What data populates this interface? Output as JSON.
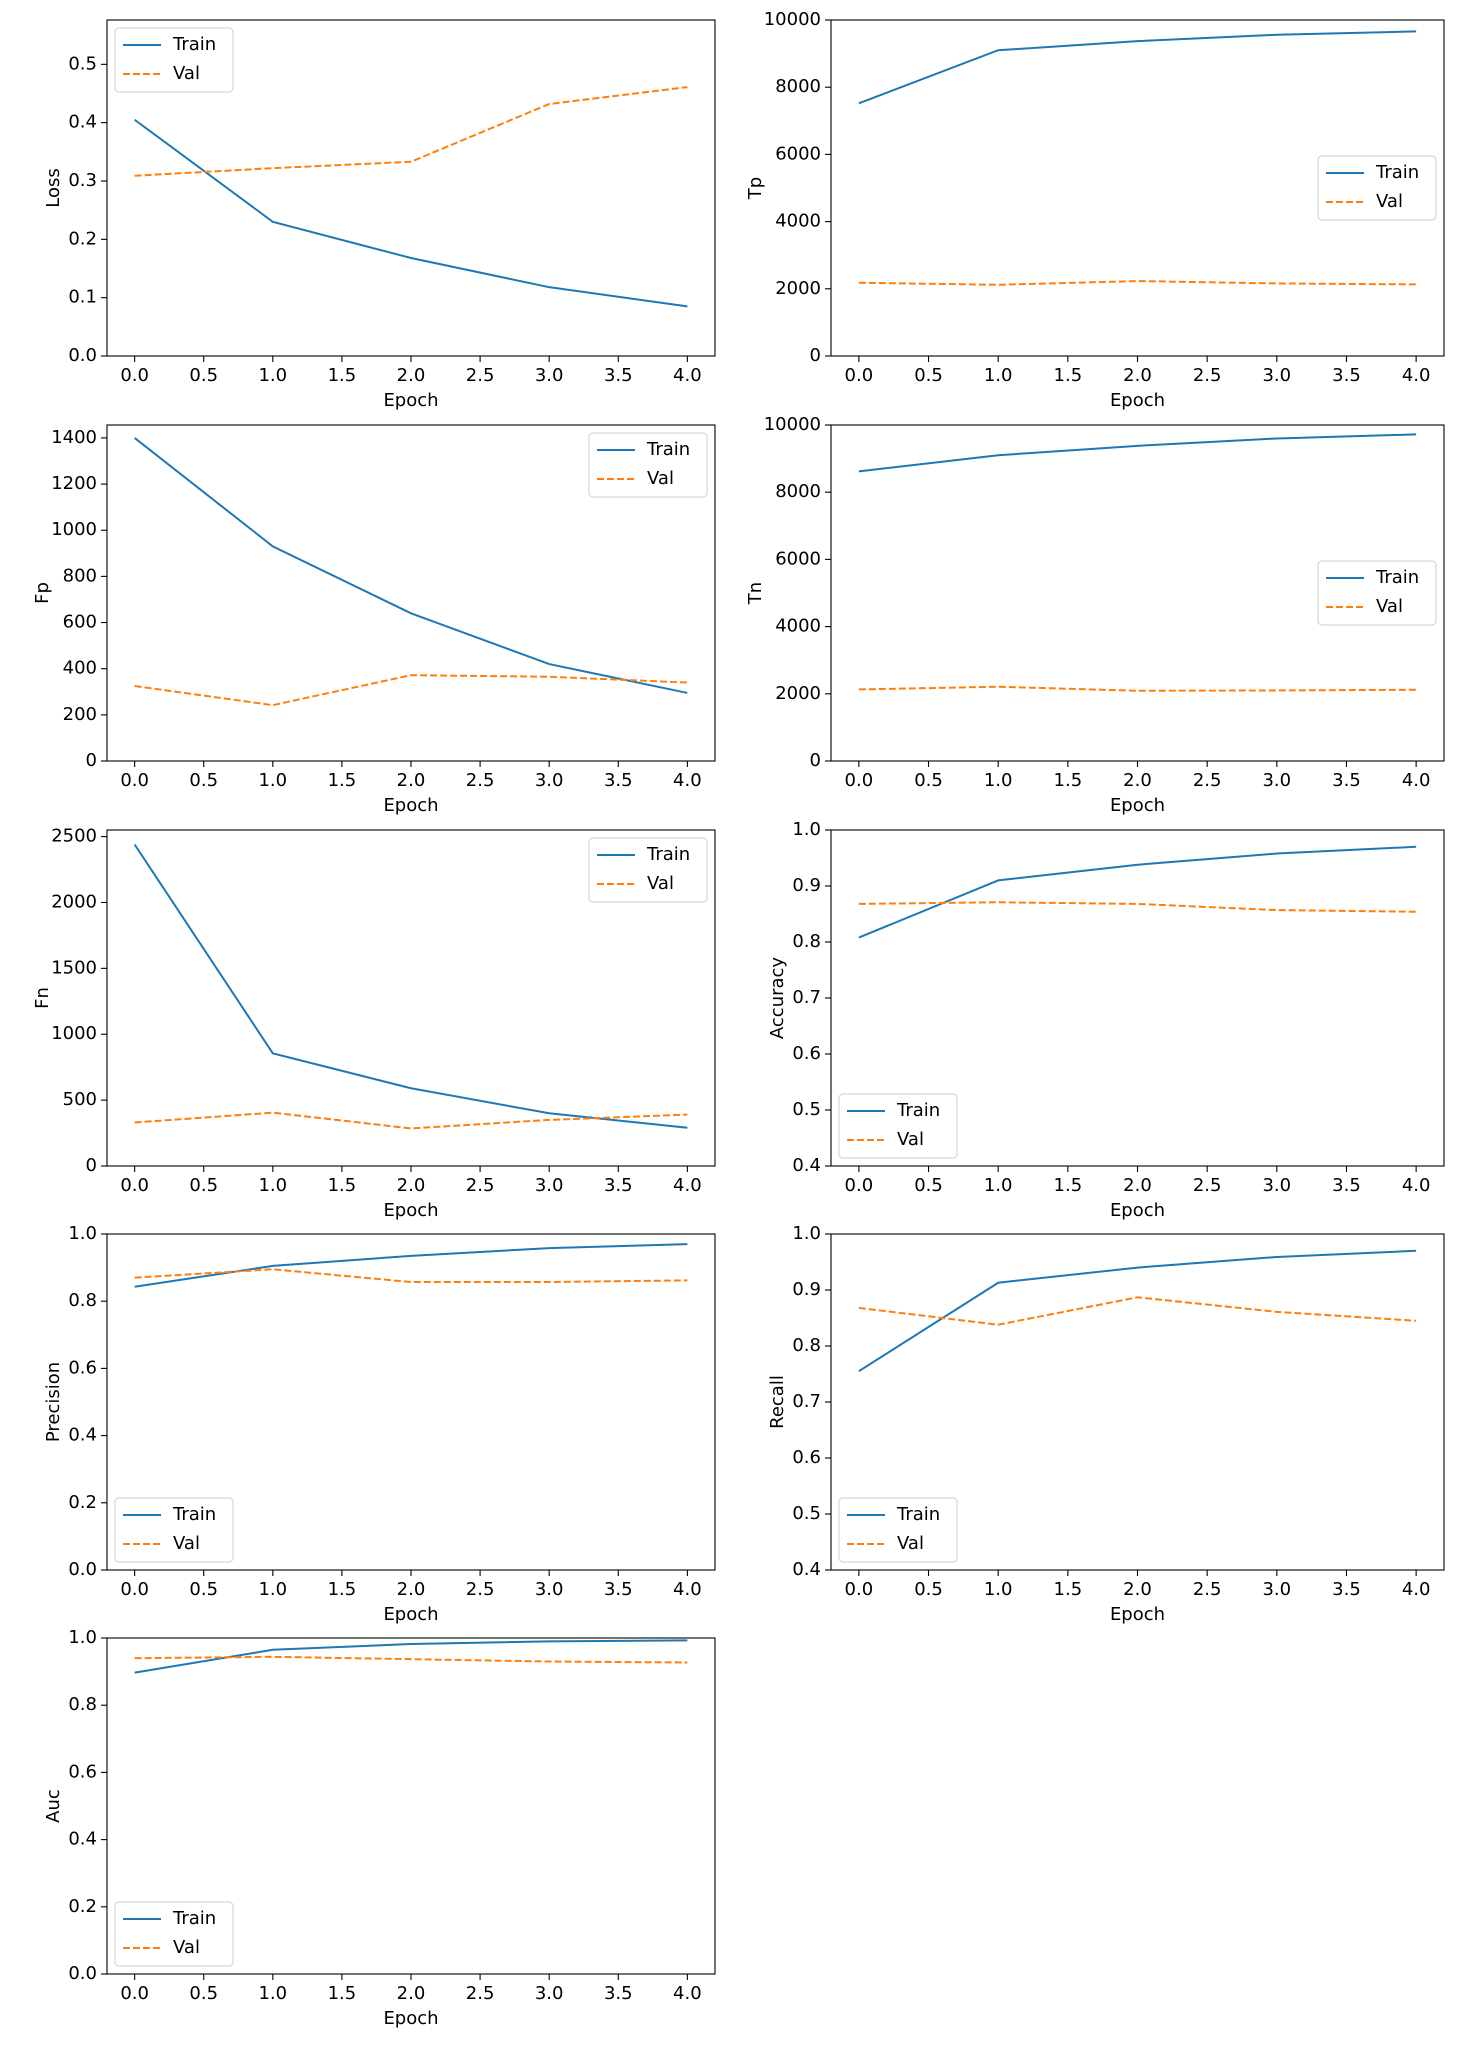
{
  "chart_data": [
    {
      "type": "line",
      "ylabel": "Loss",
      "xlabel": "Epoch",
      "x": [
        0,
        1,
        2,
        3,
        4
      ],
      "xlim": [
        -0.2,
        4.2
      ],
      "xticks": [
        {
          "value": 0,
          "label": "0.0"
        },
        0.5,
        {
          "value": 1,
          "label": "1.0"
        },
        1.5,
        {
          "value": 2,
          "label": "2.0"
        },
        2.5,
        {
          "value": 3,
          "label": "3.0"
        },
        3.5,
        {
          "value": 4,
          "label": "4.0"
        }
      ],
      "ylim": [
        0,
        0.576
      ],
      "yticks": [
        {
          "value": 0,
          "label": "0.0"
        },
        0.1,
        0.2,
        0.3,
        0.4,
        0.5
      ],
      "legend": "upper left",
      "series": [
        {
          "name": "Train",
          "color": "#1f77b4",
          "linestyle": "solid",
          "values": [
            0.405,
            0.23,
            0.168,
            0.118,
            0.085
          ]
        },
        {
          "name": "Val",
          "color": "#ff7f0e",
          "linestyle": "dashed",
          "values": [
            0.309,
            0.322,
            0.333,
            0.432,
            0.461
          ]
        }
      ]
    },
    {
      "type": "line",
      "ylabel": "Tp",
      "xlabel": "Epoch",
      "x": [
        0,
        1,
        2,
        3,
        4
      ],
      "xlim": [
        -0.2,
        4.2
      ],
      "xticks": [
        {
          "value": 0,
          "label": "0.0"
        },
        0.5,
        {
          "value": 1,
          "label": "1.0"
        },
        1.5,
        {
          "value": 2,
          "label": "2.0"
        },
        2.5,
        {
          "value": 3,
          "label": "3.0"
        },
        3.5,
        {
          "value": 4,
          "label": "4.0"
        }
      ],
      "ylim": [
        0,
        10000
      ],
      "yticks": [
        0,
        2000,
        4000,
        6000,
        8000,
        10000
      ],
      "legend": "center right",
      "series": [
        {
          "name": "Train",
          "color": "#1f77b4",
          "linestyle": "solid",
          "values": [
            7520,
            9100,
            9370,
            9560,
            9660
          ]
        },
        {
          "name": "Val",
          "color": "#ff7f0e",
          "linestyle": "dashed",
          "values": [
            2180,
            2120,
            2230,
            2160,
            2130
          ]
        }
      ]
    },
    {
      "type": "line",
      "ylabel": "Fp",
      "xlabel": "Epoch",
      "x": [
        0,
        1,
        2,
        3,
        4
      ],
      "xlim": [
        -0.2,
        4.2
      ],
      "xticks": [
        {
          "value": 0,
          "label": "0.0"
        },
        0.5,
        {
          "value": 1,
          "label": "1.0"
        },
        1.5,
        {
          "value": 2,
          "label": "2.0"
        },
        2.5,
        {
          "value": 3,
          "label": "3.0"
        },
        3.5,
        {
          "value": 4,
          "label": "4.0"
        }
      ],
      "ylim": [
        0,
        1456
      ],
      "yticks": [
        0,
        200,
        400,
        600,
        800,
        1000,
        1200,
        1400
      ],
      "legend": "upper right",
      "series": [
        {
          "name": "Train",
          "color": "#1f77b4",
          "linestyle": "solid",
          "values": [
            1400,
            930,
            640,
            420,
            295
          ]
        },
        {
          "name": "Val",
          "color": "#ff7f0e",
          "linestyle": "dashed",
          "values": [
            325,
            242,
            372,
            365,
            340
          ]
        }
      ]
    },
    {
      "type": "line",
      "ylabel": "Tn",
      "xlabel": "Epoch",
      "x": [
        0,
        1,
        2,
        3,
        4
      ],
      "xlim": [
        -0.2,
        4.2
      ],
      "xticks": [
        {
          "value": 0,
          "label": "0.0"
        },
        0.5,
        {
          "value": 1,
          "label": "1.0"
        },
        1.5,
        {
          "value": 2,
          "label": "2.0"
        },
        2.5,
        {
          "value": 3,
          "label": "3.0"
        },
        3.5,
        {
          "value": 4,
          "label": "4.0"
        }
      ],
      "ylim": [
        0,
        10000
      ],
      "yticks": [
        0,
        2000,
        4000,
        6000,
        8000,
        10000
      ],
      "legend": "center right",
      "series": [
        {
          "name": "Train",
          "color": "#1f77b4",
          "linestyle": "solid",
          "values": [
            8620,
            9100,
            9380,
            9600,
            9720
          ]
        },
        {
          "name": "Val",
          "color": "#ff7f0e",
          "linestyle": "dashed",
          "values": [
            2130,
            2210,
            2090,
            2100,
            2120
          ]
        }
      ]
    },
    {
      "type": "line",
      "ylabel": "Fn",
      "xlabel": "Epoch",
      "x": [
        0,
        1,
        2,
        3,
        4
      ],
      "xlim": [
        -0.2,
        4.2
      ],
      "xticks": [
        {
          "value": 0,
          "label": "0.0"
        },
        0.5,
        {
          "value": 1,
          "label": "1.0"
        },
        1.5,
        {
          "value": 2,
          "label": "2.0"
        },
        2.5,
        {
          "value": 3,
          "label": "3.0"
        },
        3.5,
        {
          "value": 4,
          "label": "4.0"
        }
      ],
      "ylim": [
        0,
        2550
      ],
      "yticks": [
        0,
        500,
        1000,
        1500,
        2000,
        2500
      ],
      "legend": "upper right",
      "series": [
        {
          "name": "Train",
          "color": "#1f77b4",
          "linestyle": "solid",
          "values": [
            2440,
            855,
            590,
            400,
            290
          ]
        },
        {
          "name": "Val",
          "color": "#ff7f0e",
          "linestyle": "dashed",
          "values": [
            330,
            405,
            285,
            350,
            390
          ]
        }
      ]
    },
    {
      "type": "line",
      "ylabel": "Accuracy",
      "xlabel": "Epoch",
      "x": [
        0,
        1,
        2,
        3,
        4
      ],
      "xlim": [
        -0.2,
        4.2
      ],
      "xticks": [
        {
          "value": 0,
          "label": "0.0"
        },
        0.5,
        {
          "value": 1,
          "label": "1.0"
        },
        1.5,
        {
          "value": 2,
          "label": "2.0"
        },
        2.5,
        {
          "value": 3,
          "label": "3.0"
        },
        3.5,
        {
          "value": 4,
          "label": "4.0"
        }
      ],
      "ylim": [
        0.4,
        1
      ],
      "yticks": [
        0.4,
        0.5,
        0.6,
        0.7,
        0.8,
        0.9,
        {
          "value": 1,
          "label": "1.0"
        }
      ],
      "legend": "lower left",
      "series": [
        {
          "name": "Train",
          "color": "#1f77b4",
          "linestyle": "solid",
          "values": [
            0.808,
            0.91,
            0.938,
            0.958,
            0.97
          ]
        },
        {
          "name": "Val",
          "color": "#ff7f0e",
          "linestyle": "dashed",
          "values": [
            0.868,
            0.871,
            0.868,
            0.857,
            0.854
          ]
        }
      ]
    },
    {
      "type": "line",
      "ylabel": "Precision",
      "xlabel": "Epoch",
      "x": [
        0,
        1,
        2,
        3,
        4
      ],
      "xlim": [
        -0.2,
        4.2
      ],
      "xticks": [
        {
          "value": 0,
          "label": "0.0"
        },
        0.5,
        {
          "value": 1,
          "label": "1.0"
        },
        1.5,
        {
          "value": 2,
          "label": "2.0"
        },
        2.5,
        {
          "value": 3,
          "label": "3.0"
        },
        3.5,
        {
          "value": 4,
          "label": "4.0"
        }
      ],
      "ylim": [
        0,
        1
      ],
      "yticks": [
        {
          "value": 0,
          "label": "0.0"
        },
        0.2,
        0.4,
        0.6,
        0.8,
        {
          "value": 1,
          "label": "1.0"
        }
      ],
      "legend": "lower left",
      "series": [
        {
          "name": "Train",
          "color": "#1f77b4",
          "linestyle": "solid",
          "values": [
            0.843,
            0.905,
            0.935,
            0.958,
            0.97
          ]
        },
        {
          "name": "Val",
          "color": "#ff7f0e",
          "linestyle": "dashed",
          "values": [
            0.87,
            0.895,
            0.857,
            0.857,
            0.862
          ]
        }
      ]
    },
    {
      "type": "line",
      "ylabel": "Recall",
      "xlabel": "Epoch",
      "x": [
        0,
        1,
        2,
        3,
        4
      ],
      "xlim": [
        -0.2,
        4.2
      ],
      "xticks": [
        {
          "value": 0,
          "label": "0.0"
        },
        0.5,
        {
          "value": 1,
          "label": "1.0"
        },
        1.5,
        {
          "value": 2,
          "label": "2.0"
        },
        2.5,
        {
          "value": 3,
          "label": "3.0"
        },
        3.5,
        {
          "value": 4,
          "label": "4.0"
        }
      ],
      "ylim": [
        0.4,
        1
      ],
      "yticks": [
        0.4,
        0.5,
        0.6,
        0.7,
        0.8,
        0.9,
        {
          "value": 1,
          "label": "1.0"
        }
      ],
      "legend": "lower left",
      "series": [
        {
          "name": "Train",
          "color": "#1f77b4",
          "linestyle": "solid",
          "values": [
            0.755,
            0.913,
            0.94,
            0.959,
            0.97
          ]
        },
        {
          "name": "Val",
          "color": "#ff7f0e",
          "linestyle": "dashed",
          "values": [
            0.868,
            0.838,
            0.887,
            0.861,
            0.845
          ]
        }
      ]
    },
    {
      "type": "line",
      "ylabel": "Auc",
      "xlabel": "Epoch",
      "x": [
        0,
        1,
        2,
        3,
        4
      ],
      "xlim": [
        -0.2,
        4.2
      ],
      "xticks": [
        {
          "value": 0,
          "label": "0.0"
        },
        0.5,
        {
          "value": 1,
          "label": "1.0"
        },
        1.5,
        {
          "value": 2,
          "label": "2.0"
        },
        2.5,
        {
          "value": 3,
          "label": "3.0"
        },
        3.5,
        {
          "value": 4,
          "label": "4.0"
        }
      ],
      "ylim": [
        0,
        1
      ],
      "yticks": [
        {
          "value": 0,
          "label": "0.0"
        },
        0.2,
        0.4,
        0.6,
        0.8,
        {
          "value": 1,
          "label": "1.0"
        }
      ],
      "legend": "lower left",
      "series": [
        {
          "name": "Train",
          "color": "#1f77b4",
          "linestyle": "solid",
          "values": [
            0.897,
            0.965,
            0.982,
            0.99,
            0.993
          ]
        },
        {
          "name": "Val",
          "color": "#ff7f0e",
          "linestyle": "dashed",
          "values": [
            0.94,
            0.944,
            0.937,
            0.93,
            0.927
          ]
        }
      ]
    }
  ]
}
